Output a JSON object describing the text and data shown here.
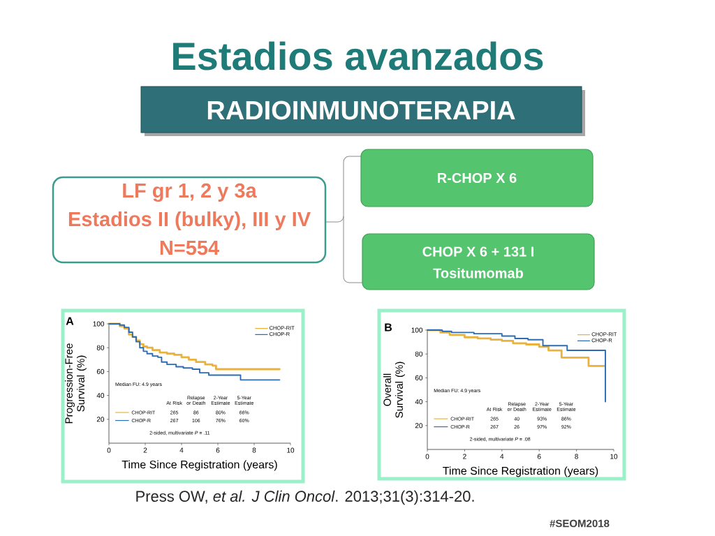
{
  "chart_data": [
    {
      "type": "other",
      "title": "Estadios avanzados",
      "subtitle": "RADIOINMUNOTERAPIA",
      "annotations": [
        "LF gr 1, 2 y 3a",
        "Estadios II (bulky), III y IV",
        "N=554",
        "R-CHOP X 6",
        "CHOP X 6 + 131 I",
        "Tositumomab",
        "Press OW, *et al.* *J Clin Oncol*. 2013;31(3):314-20.",
        "#SEOM2018"
      ]
    },
    {
      "type": "step",
      "title": "A",
      "xlabel": "Time Since Registration (years)",
      "ylabel": "Progression-Free Survival (%)",
      "xlim": [
        0,
        10
      ],
      "ylim": [
        0,
        100
      ],
      "xticks": [
        0,
        2,
        4,
        6,
        8,
        10
      ],
      "yticks": [
        20,
        40,
        60,
        80,
        100
      ],
      "legend": "top right",
      "series": [
        {
          "name": "CHOP-RIT",
          "color": "#e9b23c",
          "x": [
            0,
            0.6,
            0.85,
            1.1,
            1.3,
            1.5,
            1.7,
            1.9,
            2.1,
            2.4,
            2.8,
            3.2,
            3.6,
            4.0,
            4.4,
            4.8,
            5.3,
            5.7,
            5.9,
            9.4
          ],
          "values": [
            100,
            98,
            96,
            91,
            89,
            86,
            83,
            81,
            80,
            78,
            76,
            75,
            74,
            72,
            70,
            68,
            66,
            65,
            62,
            62
          ]
        },
        {
          "name": "CHOP-R",
          "color": "#2b6cb5",
          "x": [
            0,
            0.6,
            0.85,
            1.1,
            1.3,
            1.5,
            1.7,
            1.9,
            2.1,
            2.4,
            2.7,
            2.9,
            3.2,
            3.7,
            4.1,
            4.6,
            5.0,
            5.5,
            7.25,
            9.4
          ],
          "values": [
            100,
            99,
            97,
            93,
            89,
            85,
            80,
            77,
            75,
            73,
            72,
            68,
            66,
            64,
            63,
            62,
            59,
            57,
            53,
            53
          ]
        }
      ],
      "annotations": [
        "Median FU: 4.9 years",
        "At Risk",
        "Relapse or Death",
        "2-Year Estimate",
        "5-Year Estimate",
        "265",
        "86",
        "80%",
        "66%",
        "267",
        "106",
        "76%",
        "60%",
        "2-sided, multivariate *P* = .11"
      ]
    },
    {
      "type": "step",
      "title": "B",
      "xlabel": "Time Since Registration (years)",
      "ylabel": "Overall Survival (%)",
      "xlim": [
        0,
        10
      ],
      "ylim": [
        0,
        100
      ],
      "xticks": [
        0,
        2,
        4,
        6,
        8,
        10
      ],
      "yticks": [
        20,
        40,
        60,
        80,
        100
      ],
      "legend": "top right",
      "series": [
        {
          "name": "CHOP-RIT",
          "color": "#e9b23c",
          "x": [
            0,
            0.7,
            1.2,
            2.0,
            2.7,
            3.4,
            4.0,
            4.6,
            5.3,
            6.0,
            6.5,
            7.2,
            8.65,
            9.5
          ],
          "values": [
            100,
            98,
            96,
            94,
            93,
            92,
            91,
            89,
            88,
            86,
            83,
            77,
            70,
            70
          ]
        },
        {
          "name": "CHOP-R",
          "color": "#2b6cb5",
          "x": [
            0,
            0.8,
            1.3,
            2.5,
            4.0,
            4.7,
            5.4,
            6.2,
            7.5,
            9.55
          ],
          "values": [
            100,
            99,
            98,
            97,
            95,
            93,
            92,
            87,
            83,
            40
          ]
        }
      ],
      "annotations": [
        "Median FU: 4.9 years",
        "At Risk",
        "Relapse or Death",
        "2-Year Estimate",
        "5-Year Estimate",
        "265",
        "40",
        "93%",
        "86%",
        "267",
        "26",
        "97%",
        "92%",
        "2-sided, multivariate *P* = .08"
      ]
    }
  ]
}
